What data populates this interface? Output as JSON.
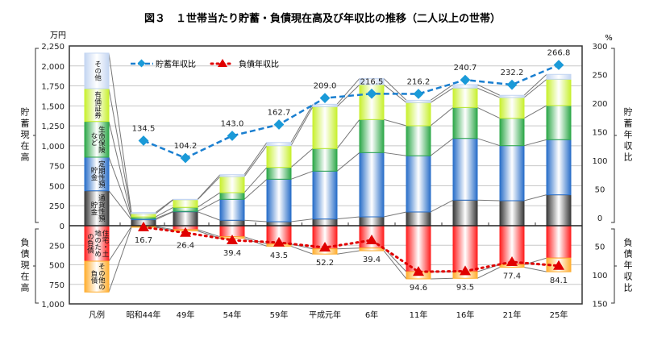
{
  "chart_data": {
    "type": "bar",
    "title": "図３　１世帯当たり貯蓄・負債現在高及び年収比の推移（二人以上の世帯）",
    "categories": [
      "凡例",
      "昭和44年",
      "49年",
      "54年",
      "59年",
      "平成元年",
      "6年",
      "11年",
      "16年",
      "21年",
      "25年"
    ],
    "left_axis": {
      "unit": "万円",
      "savings_label": "貯蓄現在高",
      "debt_label": "負債現在高",
      "savings_range": [
        0,
        2250
      ],
      "debt_range": [
        0,
        1000
      ],
      "ticks_up": [
        "0",
        "250",
        "500",
        "750",
        "1,000",
        "1,250",
        "1,500",
        "1,750",
        "2,000",
        "2,250"
      ],
      "ticks_down": [
        "250",
        "500",
        "750",
        "1,000"
      ]
    },
    "right_axis": {
      "unit": "%",
      "savings_label": "貯蓄年収比",
      "debt_label": "負債年収比",
      "savings_range": [
        0,
        300
      ],
      "debt_range": [
        0,
        150
      ],
      "ticks_up": [
        "0",
        "50",
        "100",
        "150",
        "200",
        "250",
        "300"
      ],
      "ticks_down": [
        "50",
        "100",
        "150"
      ]
    },
    "grid": true,
    "savings_series": [
      {
        "name": "通貨性預貯金",
        "legend_text": "通貨性預貯金",
        "color": "#3a3a3a",
        "values": [
          437,
          75,
          175,
          68,
          50,
          84,
          111,
          172,
          320,
          313,
          387
        ]
      },
      {
        "name": "定期性預貯金",
        "legend_text": "定期性預貯金",
        "color": "#2a6fc9",
        "values": [
          421,
          15,
          5,
          262,
          532,
          599,
          804,
          703,
          773,
          689,
          690
        ]
      },
      {
        "name": "生命保険など",
        "legend_text": "生命保険など",
        "color": "#2ea84a",
        "values": [
          447,
          20,
          50,
          84,
          148,
          283,
          414,
          376,
          387,
          343,
          427
        ]
      },
      {
        "name": "有価証券",
        "legend_text": "有価証券",
        "color": "#c8f030",
        "values": [
          411,
          40,
          95,
          201,
          272,
          524,
          437,
          290,
          243,
          259,
          329
        ]
      },
      {
        "name": "その他",
        "legend_text": "その他",
        "color": "#c4d6f2",
        "values": [
          444,
          15,
          5,
          24,
          40,
          30,
          77,
          29,
          43,
          28,
          61
        ]
      }
    ],
    "debt_series": [
      {
        "name": "住宅・土地のための負債",
        "legend_text": "住宅・土地のための負債",
        "color": "#ff2020",
        "values": [
          454,
          10,
          50,
          141,
          235,
          296,
          286,
          589,
          589,
          498,
          414
        ]
      },
      {
        "name": "その他の負債",
        "legend_text": "その他の負債",
        "color": "#ffae30",
        "values": [
          394,
          10,
          17,
          20,
          27,
          67,
          34,
          91,
          84,
          33,
          175
        ]
      }
    ],
    "ratio_series": [
      {
        "name": "貯蓄年収比",
        "color": "#1a7fd0",
        "values": [
          null,
          134.5,
          104.2,
          143.0,
          162.7,
          209.0,
          216.5,
          216.2,
          240.7,
          232.2,
          266.8
        ],
        "labels": [
          "",
          "134.5",
          "104.2",
          "143.0",
          "162.7",
          "209.0",
          "216.5",
          "216.2",
          "240.7",
          "232.2",
          "266.8"
        ]
      },
      {
        "name": "負債年収比",
        "color": "#e00000",
        "values": [
          null,
          16.7,
          26.4,
          39.4,
          43.5,
          52.2,
          39.4,
          94.6,
          93.5,
          77.4,
          84.1
        ],
        "labels": [
          "",
          "16.7",
          "26.4",
          "39.4",
          "43.5",
          "52.2",
          "39.4",
          "94.6",
          "93.5",
          "77.4",
          "84.1"
        ]
      }
    ],
    "legend_placement": "top-left"
  }
}
